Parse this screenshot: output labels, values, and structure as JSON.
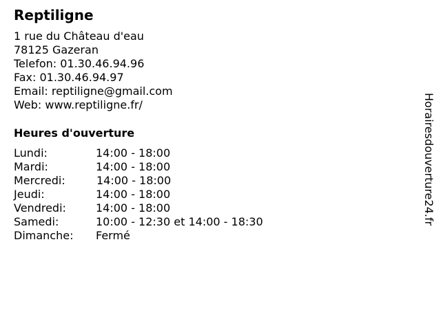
{
  "business": {
    "name": "Reptiligne",
    "address_line1": "1 rue du Château d'eau",
    "address_line2": "78125 Gazeran",
    "phone": "Telefon: 01.30.46.94.96",
    "fax": "Fax: 01.30.46.94.97",
    "email": "Email: reptiligne@gmail.com",
    "web": "Web: www.reptiligne.fr/"
  },
  "hours": {
    "heading": "Heures d'ouverture",
    "days": [
      {
        "day": "Lundi:",
        "time": "14:00 - 18:00"
      },
      {
        "day": "Mardi:",
        "time": "14:00 - 18:00"
      },
      {
        "day": "Mercredi:",
        "time": "14:00 - 18:00"
      },
      {
        "day": "Jeudi:",
        "time": "14:00 - 18:00"
      },
      {
        "day": "Vendredi:",
        "time": "14:00 - 18:00"
      },
      {
        "day": "Samedi:",
        "time": "10:00 - 12:30 et 14:00 - 18:30"
      },
      {
        "day": "Dimanche:",
        "time": "Fermé"
      }
    ]
  },
  "watermark": "Horairesdouverture24.fr"
}
